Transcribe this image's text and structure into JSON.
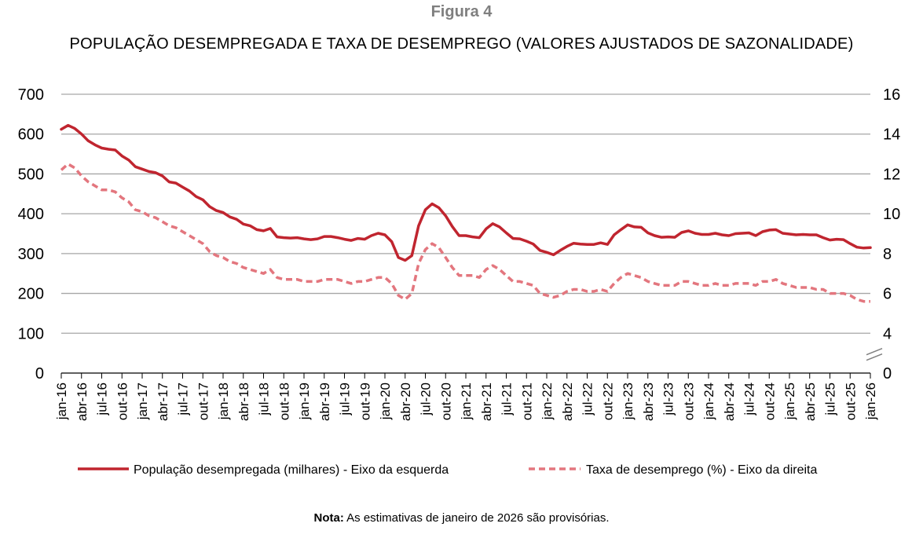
{
  "figure_label": "Figura 4",
  "note": {
    "bold": "Nota:",
    "text": " As estimativas de janeiro de 2026 são provisórias."
  },
  "colors": {
    "population": "#c0252f",
    "rate": "#e3767e",
    "grid": "#a6a6a6",
    "axis": "#000000"
  },
  "chart_data": {
    "type": "line",
    "title": "POPULAÇÃO DESEMPREGADA E TAXA DE DESEMPREGO (VALORES AJUSTADOS DE SAZONALIDADE)",
    "xlabel": "",
    "ylabel_left": "",
    "ylabel_right": "",
    "grid": true,
    "legend_position": "bottom",
    "ylim_left": [
      0,
      700
    ],
    "yticks_left": [
      0,
      100,
      200,
      300,
      400,
      500,
      600,
      700
    ],
    "ylim_right": [
      0,
      16
    ],
    "yticks_right": [
      0,
      4,
      6,
      8,
      10,
      12,
      14,
      16
    ],
    "right_axis_break": "between 0 and 4",
    "x_start": "jan-16",
    "x_end": "jan-26",
    "x_frequency": "monthly",
    "x_tick_labels": [
      "jan-16",
      "abr-16",
      "jul-16",
      "out-16",
      "jan-17",
      "abr-17",
      "jul-17",
      "out-17",
      "jan-18",
      "abr-18",
      "jul-18",
      "out-18",
      "jan-19",
      "abr-19",
      "jul-19",
      "out-19",
      "jan-20",
      "abr-20",
      "jul-20",
      "out-20",
      "jan-21",
      "abr-21",
      "jul-21",
      "out-21",
      "jan-22",
      "abr-22",
      "jul-22",
      "out-22",
      "jan-23",
      "abr-23",
      "jul-23",
      "out-23",
      "jan-24",
      "abr-24",
      "jul-24",
      "out-24",
      "jan-25",
      "abr-25",
      "jul-25",
      "out-25",
      "jan-26"
    ],
    "series": [
      {
        "name": "População desempregada (milhares) - Eixo da esquerda",
        "axis": "left",
        "style": "solid",
        "values": [
          612,
          622,
          614,
          600,
          583,
          573,
          565,
          562,
          560,
          545,
          535,
          518,
          512,
          506,
          503,
          495,
          480,
          477,
          467,
          457,
          443,
          435,
          418,
          408,
          403,
          392,
          386,
          374,
          370,
          360,
          357,
          363,
          342,
          340,
          339,
          340,
          337,
          335,
          337,
          343,
          343,
          340,
          336,
          333,
          338,
          336,
          345,
          351,
          347,
          330,
          290,
          283,
          295,
          370,
          410,
          425,
          415,
          395,
          368,
          345,
          345,
          342,
          340,
          362,
          375,
          367,
          352,
          338,
          337,
          331,
          324,
          308,
          303,
          297,
          308,
          318,
          326,
          324,
          323,
          323,
          327,
          323,
          347,
          360,
          372,
          367,
          366,
          352,
          345,
          341,
          342,
          341,
          353,
          357,
          351,
          348,
          348,
          351,
          347,
          345,
          350,
          351,
          352,
          345,
          355,
          359,
          360,
          351,
          349,
          347,
          348,
          347,
          347,
          340,
          334,
          336,
          335,
          325,
          316,
          314,
          315
        ]
      },
      {
        "name": "Taxa de desemprego (%) - Eixo da direita",
        "axis": "right",
        "style": "dashed",
        "values": [
          12.2,
          12.5,
          12.3,
          11.9,
          11.6,
          11.4,
          11.2,
          11.2,
          11.1,
          10.8,
          10.6,
          10.2,
          10.1,
          9.9,
          9.8,
          9.6,
          9.4,
          9.3,
          9.1,
          8.9,
          8.7,
          8.5,
          8.1,
          7.9,
          7.8,
          7.6,
          7.5,
          7.3,
          7.2,
          7.1,
          7.0,
          7.2,
          6.8,
          6.7,
          6.7,
          6.7,
          6.6,
          6.6,
          6.6,
          6.7,
          6.7,
          6.7,
          6.6,
          6.5,
          6.6,
          6.6,
          6.7,
          6.8,
          6.8,
          6.5,
          5.9,
          5.7,
          6.0,
          7.5,
          8.2,
          8.5,
          8.3,
          7.8,
          7.3,
          6.9,
          6.9,
          6.9,
          6.8,
          7.2,
          7.4,
          7.2,
          6.9,
          6.6,
          6.6,
          6.5,
          6.4,
          6.0,
          5.9,
          5.8,
          5.9,
          6.1,
          6.2,
          6.2,
          6.1,
          6.1,
          6.2,
          6.1,
          6.5,
          6.8,
          7.0,
          6.9,
          6.8,
          6.6,
          6.5,
          6.4,
          6.4,
          6.4,
          6.6,
          6.6,
          6.5,
          6.4,
          6.4,
          6.5,
          6.4,
          6.4,
          6.5,
          6.5,
          6.5,
          6.4,
          6.6,
          6.6,
          6.7,
          6.5,
          6.4,
          6.3,
          6.3,
          6.3,
          6.2,
          6.2,
          6.0,
          6.0,
          6.0,
          5.9,
          5.7,
          5.6,
          5.6
        ]
      }
    ]
  }
}
